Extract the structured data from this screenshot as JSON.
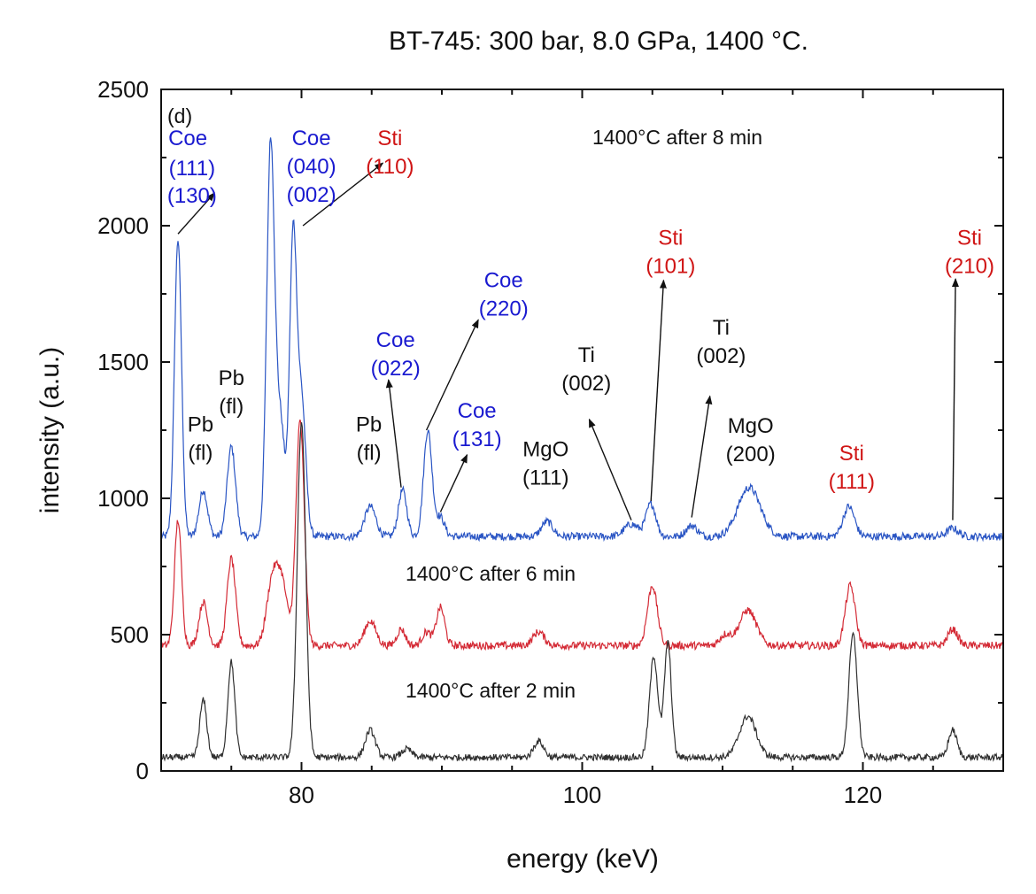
{
  "chart_data": {
    "type": "line",
    "title": "BT-745: 300 bar, 8.0 GPa, 1400 °C.",
    "xlabel": "energy (keV)",
    "ylabel": "intensity (a.u.)",
    "xlim": [
      70,
      130
    ],
    "ylim": [
      0,
      2500
    ],
    "xticks": [
      80,
      100,
      120
    ],
    "yticks": [
      0,
      500,
      1000,
      1500,
      2000,
      2500
    ],
    "grid": false,
    "panel_label": "(d)",
    "colors": {
      "blue": "#2a55c4",
      "red": "#d42a35",
      "black": "#303030",
      "coe_label": "#1a1ad0",
      "sti_label": "#d01515",
      "plain_label": "#111111"
    },
    "series": [
      {
        "name": "1400°C after 8 min",
        "color": "#2a55c4",
        "baseline": 860,
        "noise": 14,
        "peaks": [
          [
            71.2,
            1090,
            0.25
          ],
          [
            73.0,
            170,
            0.3
          ],
          [
            75.0,
            330,
            0.3
          ],
          [
            77.8,
            1440,
            0.28
          ],
          [
            78.5,
            420,
            0.3
          ],
          [
            79.4,
            1080,
            0.25
          ],
          [
            80.0,
            500,
            0.3
          ],
          [
            84.9,
            110,
            0.4
          ],
          [
            87.2,
            170,
            0.3
          ],
          [
            89.0,
            390,
            0.3
          ],
          [
            89.9,
            70,
            0.3
          ],
          [
            97.5,
            55,
            0.4
          ],
          [
            103.5,
            45,
            0.5
          ],
          [
            104.9,
            120,
            0.35
          ],
          [
            107.8,
            40,
            0.4
          ],
          [
            111.9,
            180,
            0.8
          ],
          [
            119.0,
            110,
            0.4
          ],
          [
            126.4,
            30,
            0.4
          ]
        ],
        "legend_text": "1400°C after 8 min"
      },
      {
        "name": "1400°C after 6 min",
        "color": "#d42a35",
        "baseline": 460,
        "noise": 14,
        "peaks": [
          [
            71.2,
            460,
            0.25
          ],
          [
            73.0,
            160,
            0.3
          ],
          [
            75.0,
            320,
            0.3
          ],
          [
            77.9,
            220,
            0.4
          ],
          [
            78.6,
            220,
            0.4
          ],
          [
            79.9,
            820,
            0.3
          ],
          [
            84.9,
            90,
            0.4
          ],
          [
            87.1,
            60,
            0.3
          ],
          [
            88.9,
            50,
            0.3
          ],
          [
            89.9,
            140,
            0.3
          ],
          [
            96.9,
            50,
            0.4
          ],
          [
            105.0,
            220,
            0.35
          ],
          [
            110.2,
            40,
            0.4
          ],
          [
            111.8,
            130,
            0.6
          ],
          [
            119.1,
            220,
            0.35
          ],
          [
            126.4,
            60,
            0.35
          ]
        ],
        "legend_text": "1400°C after 6 min"
      },
      {
        "name": "1400°C after 2 min",
        "color": "#303030",
        "baseline": 50,
        "noise": 12,
        "peaks": [
          [
            73.0,
            210,
            0.25
          ],
          [
            75.0,
            350,
            0.25
          ],
          [
            80.0,
            1230,
            0.3
          ],
          [
            84.9,
            100,
            0.35
          ],
          [
            87.5,
            30,
            0.35
          ],
          [
            96.9,
            60,
            0.35
          ],
          [
            105.1,
            370,
            0.3
          ],
          [
            106.1,
            420,
            0.25
          ],
          [
            111.8,
            150,
            0.6
          ],
          [
            119.3,
            450,
            0.3
          ],
          [
            126.4,
            100,
            0.3
          ]
        ],
        "legend_text": "1400°C after 2 min"
      }
    ],
    "annotations": [
      {
        "id": "coe-111-130-coe",
        "lines": [
          "Coe"
        ],
        "x": 71.9,
        "y": 2295,
        "kind": "coe"
      },
      {
        "id": "coe-111",
        "lines": [
          "(111)"
        ],
        "x": 72.2,
        "y": 2185,
        "kind": "coe"
      },
      {
        "id": "coe-130",
        "lines": [
          "(130)"
        ],
        "x": 72.2,
        "y": 2085,
        "kind": "coe"
      },
      {
        "id": "coe-040-002",
        "lines": [
          "Coe",
          "(040)",
          "(002)"
        ],
        "x": 80.7,
        "y": 2295,
        "kind": "coe"
      },
      {
        "id": "sti-110",
        "lines": [
          "Sti",
          "(110)"
        ],
        "x": 86.3,
        "y": 2295,
        "kind": "sti"
      },
      {
        "id": "coe-022",
        "lines": [
          "Coe",
          "(022)"
        ],
        "x": 86.7,
        "y": 1555,
        "kind": "coe"
      },
      {
        "id": "coe-220",
        "lines": [
          "Coe",
          "(220)"
        ],
        "x": 94.4,
        "y": 1775,
        "kind": "coe"
      },
      {
        "id": "coe-131",
        "lines": [
          "Coe",
          "(131)"
        ],
        "x": 92.5,
        "y": 1295,
        "kind": "coe"
      },
      {
        "id": "pb-fl-1",
        "lines": [
          "Pb",
          "(fl)"
        ],
        "x": 72.8,
        "y": 1245,
        "kind": "plain"
      },
      {
        "id": "pb-fl-2",
        "lines": [
          "Pb",
          "(fl)"
        ],
        "x": 75.0,
        "y": 1415,
        "kind": "plain"
      },
      {
        "id": "pb-fl-3",
        "lines": [
          "Pb",
          "(fl)"
        ],
        "x": 84.8,
        "y": 1245,
        "kind": "plain"
      },
      {
        "id": "mgo-111",
        "lines": [
          "MgO",
          "(111)"
        ],
        "x": 97.4,
        "y": 1155,
        "kind": "plain"
      },
      {
        "id": "ti-002-1",
        "lines": [
          "Ti",
          "(002)"
        ],
        "x": 100.3,
        "y": 1500,
        "kind": "plain"
      },
      {
        "id": "sti-101",
        "lines": [
          "Sti",
          "(101)"
        ],
        "x": 106.3,
        "y": 1930,
        "kind": "sti"
      },
      {
        "id": "ti-002-2",
        "lines": [
          "Ti",
          "(002)"
        ],
        "x": 109.9,
        "y": 1600,
        "kind": "plain"
      },
      {
        "id": "mgo-200",
        "lines": [
          "MgO",
          "(200)"
        ],
        "x": 112.0,
        "y": 1240,
        "kind": "plain"
      },
      {
        "id": "sti-111",
        "lines": [
          "Sti",
          "(111)"
        ],
        "x": 119.2,
        "y": 1140,
        "kind": "sti"
      },
      {
        "id": "sti-210",
        "lines": [
          "Sti",
          "(210)"
        ],
        "x": 127.6,
        "y": 1930,
        "kind": "sti"
      }
    ],
    "arrows": [
      {
        "from": [
          71.2,
          1970
        ],
        "to": [
          73.8,
          2120
        ]
      },
      {
        "from": [
          80.1,
          2000
        ],
        "to": [
          85.8,
          2230
        ]
      },
      {
        "from": [
          87.1,
          1040
        ],
        "to": [
          86.2,
          1435
        ]
      },
      {
        "from": [
          88.9,
          1250
        ],
        "to": [
          92.6,
          1655
        ]
      },
      {
        "from": [
          89.9,
          950
        ],
        "to": [
          91.8,
          1160
        ]
      },
      {
        "from": [
          103.5,
          920
        ],
        "to": [
          100.5,
          1290
        ]
      },
      {
        "from": [
          104.9,
          990
        ],
        "to": [
          105.8,
          1800
        ]
      },
      {
        "from": [
          107.8,
          930
        ],
        "to": [
          109.1,
          1375
        ]
      },
      {
        "from": [
          126.4,
          920
        ],
        "to": [
          126.6,
          1805
        ]
      }
    ]
  },
  "labels": {
    "title": "BT-745: 300 bar, 8.0 GPa, 1400 °C.",
    "xlabel": "energy (keV)",
    "ylabel": "intensity (a.u.)",
    "panel_label": "(d)",
    "legend_8min": "1400°C after 8 min",
    "legend_6min": "1400°C after 6 min",
    "legend_2min": "1400°C after 2 min"
  }
}
